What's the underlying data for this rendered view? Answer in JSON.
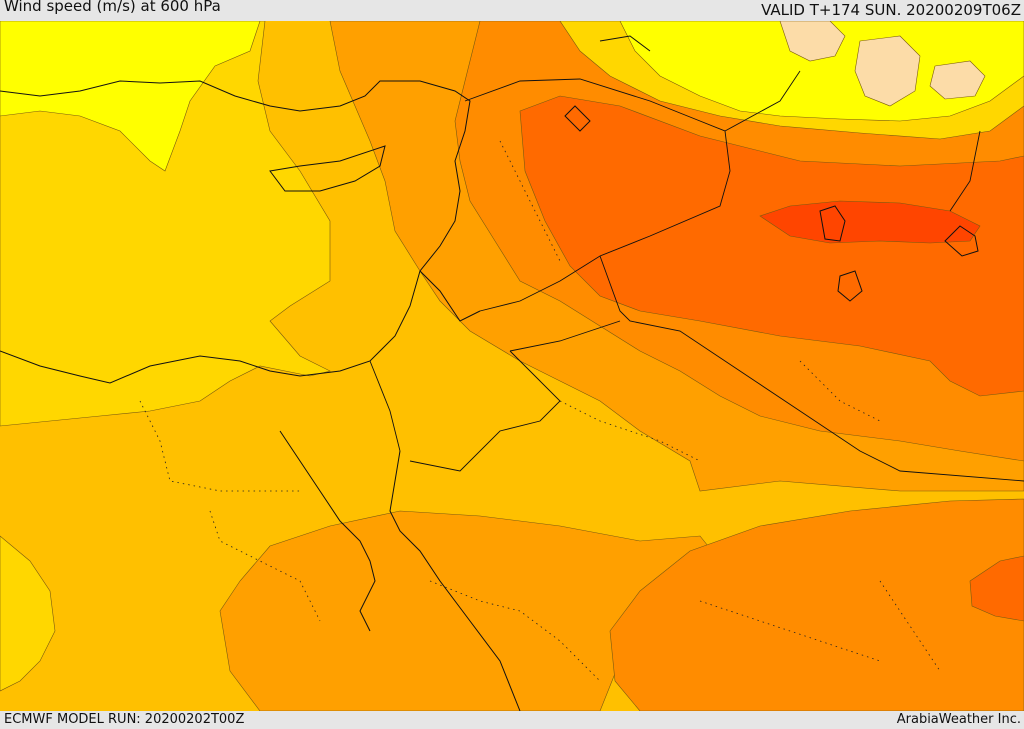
{
  "header": {
    "title": "Wind speed (m/s) at 600 hPa",
    "valid": "VALID T+174 SUN. 20200209T06Z"
  },
  "footer": {
    "model_run": "ECMWF MODEL RUN: 20200202T00Z",
    "credit": "ArabiaWeather Inc."
  },
  "map": {
    "field": "wind speed",
    "level": "600 hPa",
    "shading_colors": {
      "band_1": "#ffff00",
      "band_2": "#ffd700",
      "band_3": "#ffc000",
      "band_4": "#ffa000",
      "band_5": "#ff8c00",
      "band_6": "#ff6a00",
      "band_7": "#ff4500",
      "band_8": "#fcdca8"
    }
  }
}
